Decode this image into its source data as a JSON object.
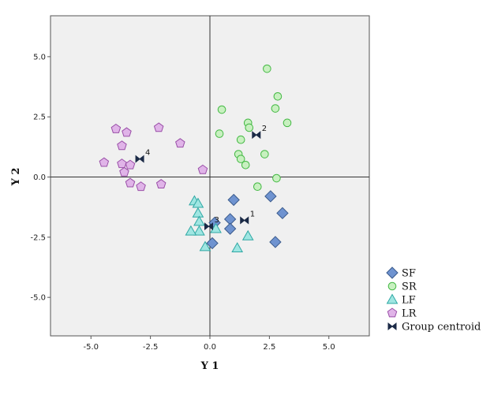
{
  "chart_data": {
    "type": "scatter",
    "xlabel": "Y 1",
    "ylabel": "Y 2",
    "xlim": [
      -6.7,
      6.7
    ],
    "ylim": [
      -6.6,
      6.7
    ],
    "xticks": [
      -5.0,
      -2.5,
      0.0,
      2.5,
      5.0
    ],
    "yticks": [
      -5.0,
      -2.5,
      0.0,
      2.5,
      5.0
    ],
    "xtick_labels": [
      "-5.0",
      "-2.5",
      "0.0",
      "2.5",
      "5.0"
    ],
    "ytick_labels": [
      "-5.0",
      "-2.5",
      "0.0",
      "2.5",
      "5.0"
    ],
    "reference_lines": {
      "x": 0,
      "y": 0
    },
    "legend_position": "bottom-right",
    "series": [
      {
        "name": "SF",
        "marker": "diamond",
        "fill": "#6f93d0",
        "stroke": "#3a5a8c",
        "points": [
          [
            1.0,
            -0.95
          ],
          [
            2.55,
            -0.8
          ],
          [
            3.05,
            -1.5
          ],
          [
            0.85,
            -1.75
          ],
          [
            0.85,
            -2.15
          ],
          [
            0.2,
            -1.9
          ],
          [
            0.1,
            -2.75
          ],
          [
            2.75,
            -2.7
          ]
        ]
      },
      {
        "name": "SR",
        "marker": "circle",
        "fill": "#c8f0c0",
        "stroke": "#44b944",
        "points": [
          [
            2.4,
            4.5
          ],
          [
            2.85,
            3.35
          ],
          [
            2.75,
            2.85
          ],
          [
            0.5,
            2.8
          ],
          [
            3.25,
            2.25
          ],
          [
            1.6,
            2.25
          ],
          [
            1.65,
            2.05
          ],
          [
            0.4,
            1.8
          ],
          [
            1.3,
            1.55
          ],
          [
            1.2,
            0.95
          ],
          [
            2.3,
            0.95
          ],
          [
            1.3,
            0.75
          ],
          [
            1.5,
            0.5
          ],
          [
            2.8,
            -0.05
          ],
          [
            2.0,
            -0.4
          ]
        ]
      },
      {
        "name": "LF",
        "marker": "triangle",
        "fill": "#9fe6e2",
        "stroke": "#2fa8a4",
        "points": [
          [
            -0.65,
            -1.0
          ],
          [
            -0.5,
            -1.1
          ],
          [
            -0.5,
            -1.5
          ],
          [
            -0.45,
            -1.85
          ],
          [
            -0.45,
            -2.25
          ],
          [
            -0.8,
            -2.25
          ],
          [
            0.25,
            -2.15
          ],
          [
            1.6,
            -2.45
          ],
          [
            -0.2,
            -2.9
          ],
          [
            1.15,
            -2.95
          ]
        ]
      },
      {
        "name": "LR",
        "marker": "pentagon",
        "fill": "#e0b4e8",
        "stroke": "#9a4fa8",
        "points": [
          [
            -3.95,
            2.0
          ],
          [
            -3.5,
            1.85
          ],
          [
            -2.15,
            2.05
          ],
          [
            -3.7,
            1.3
          ],
          [
            -1.25,
            1.4
          ],
          [
            -4.45,
            0.6
          ],
          [
            -3.7,
            0.55
          ],
          [
            -3.35,
            0.5
          ],
          [
            -3.6,
            0.2
          ],
          [
            -0.3,
            0.3
          ],
          [
            -3.35,
            -0.25
          ],
          [
            -2.9,
            -0.4
          ],
          [
            -2.05,
            -0.3
          ]
        ]
      },
      {
        "name": "Group centroid",
        "marker": "bowtie",
        "fill": "#1b2a46",
        "stroke": "#1b2a46",
        "points": [
          [
            1.45,
            -1.8
          ],
          [
            1.95,
            1.75
          ],
          [
            -0.05,
            -2.05
          ],
          [
            -2.95,
            0.75
          ]
        ],
        "labels": [
          "1",
          "2",
          "3",
          "4"
        ]
      }
    ]
  }
}
